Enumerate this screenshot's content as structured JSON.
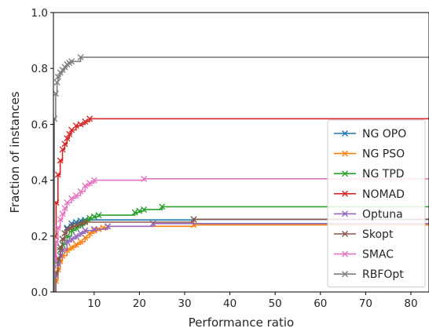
{
  "chart_data": {
    "type": "line",
    "title": "",
    "xlabel": "Performance ratio",
    "ylabel": "Fraction of instances",
    "xlim": [
      1,
      84
    ],
    "ylim": [
      0,
      1.0
    ],
    "xticks": [
      10,
      20,
      30,
      40,
      50,
      60,
      70,
      80
    ],
    "yticks": [
      0.0,
      0.2,
      0.4,
      0.6,
      0.8,
      1.0
    ],
    "grid": false,
    "legend_position": "center-right",
    "series": [
      {
        "name": "NG OPO",
        "color": "#1f77b4",
        "x": [
          1,
          1.5,
          2,
          2.5,
          3,
          3.5,
          4,
          5,
          6,
          7,
          8,
          32,
          84
        ],
        "y": [
          0,
          0.06,
          0.12,
          0.16,
          0.19,
          0.21,
          0.23,
          0.245,
          0.25,
          0.255,
          0.258,
          0.26,
          0.26
        ]
      },
      {
        "name": "NG PSO",
        "color": "#ff7f0e",
        "x": [
          1,
          1.5,
          2,
          2.5,
          3,
          4,
          5,
          6,
          7,
          8,
          9,
          10,
          11,
          12,
          13,
          32,
          84
        ],
        "y": [
          0,
          0.04,
          0.08,
          0.11,
          0.13,
          0.15,
          0.16,
          0.17,
          0.18,
          0.195,
          0.21,
          0.22,
          0.225,
          0.23,
          0.235,
          0.24,
          0.24
        ]
      },
      {
        "name": "NG TPD",
        "color": "#2ca02c",
        "x": [
          1,
          1.5,
          2,
          2.5,
          3,
          4,
          5,
          6,
          7,
          8,
          9,
          10,
          11,
          19,
          20,
          21,
          25,
          84
        ],
        "y": [
          0,
          0.06,
          0.11,
          0.15,
          0.17,
          0.2,
          0.22,
          0.23,
          0.24,
          0.255,
          0.265,
          0.27,
          0.275,
          0.285,
          0.29,
          0.295,
          0.305,
          0.305
        ]
      },
      {
        "name": "NOMAD",
        "color": "#d62728",
        "x": [
          1,
          1.3,
          1.6,
          2,
          2.5,
          3,
          3.5,
          4,
          4.5,
          5,
          6,
          7,
          8,
          9,
          84
        ],
        "y": [
          0,
          0.2,
          0.32,
          0.42,
          0.47,
          0.51,
          0.53,
          0.55,
          0.565,
          0.58,
          0.595,
          0.6,
          0.61,
          0.62,
          0.625
        ]
      },
      {
        "name": "Optuna",
        "color": "#9467bd",
        "x": [
          1,
          1.5,
          2,
          2.5,
          3,
          4,
          5,
          6,
          7,
          8,
          10,
          13,
          23,
          84
        ],
        "y": [
          0,
          0.06,
          0.1,
          0.13,
          0.15,
          0.18,
          0.19,
          0.2,
          0.21,
          0.22,
          0.225,
          0.235,
          0.245,
          0.265
        ]
      },
      {
        "name": "Skopt",
        "color": "#8c564b",
        "x": [
          1,
          1.5,
          2,
          2.5,
          3,
          3.5,
          4,
          5,
          6,
          7,
          8,
          32,
          84
        ],
        "y": [
          0,
          0.07,
          0.12,
          0.16,
          0.19,
          0.21,
          0.225,
          0.235,
          0.24,
          0.245,
          0.25,
          0.26,
          0.26
        ]
      },
      {
        "name": "SMAC",
        "color": "#e377c2",
        "x": [
          1,
          1.3,
          1.6,
          2,
          2.5,
          3,
          3.5,
          4,
          5,
          6,
          7,
          8,
          9,
          10,
          21,
          84
        ],
        "y": [
          0,
          0.12,
          0.18,
          0.23,
          0.26,
          0.28,
          0.3,
          0.32,
          0.335,
          0.345,
          0.36,
          0.38,
          0.39,
          0.4,
          0.405,
          0.405
        ]
      },
      {
        "name": "RBFOpt",
        "color": "#7f7f7f",
        "x": [
          1,
          1.2,
          1.5,
          1.8,
          2,
          2.5,
          3,
          3.5,
          4,
          4.5,
          5,
          7,
          84
        ],
        "y": [
          0,
          0.62,
          0.71,
          0.75,
          0.77,
          0.785,
          0.795,
          0.805,
          0.815,
          0.82,
          0.825,
          0.84,
          0.84
        ]
      }
    ]
  }
}
